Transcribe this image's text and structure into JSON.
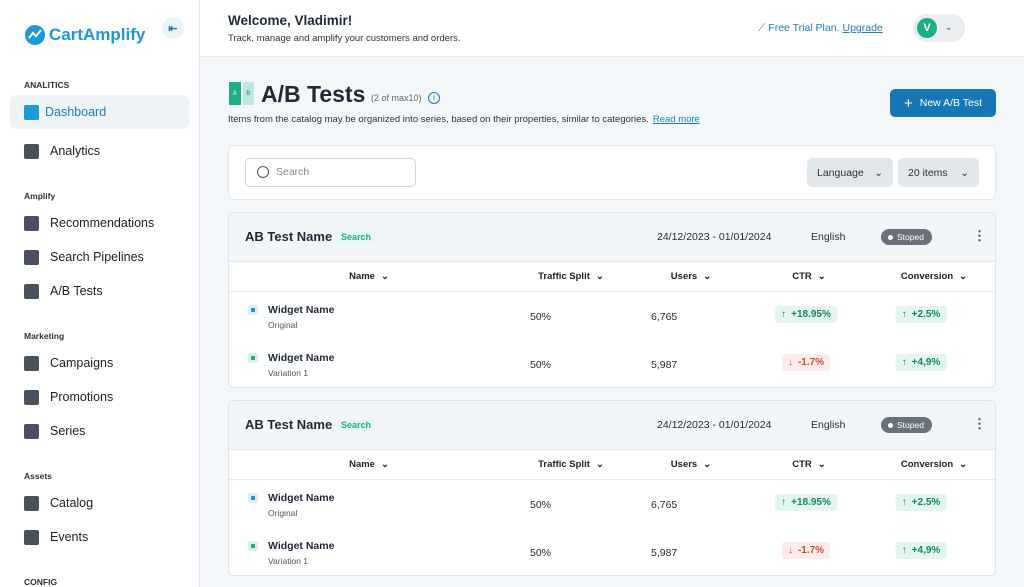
{
  "sidebar": {
    "logo": "CartAmplify",
    "sections": [
      {
        "title": "ANALITICS",
        "items": [
          "Dashboard",
          "Analytics"
        ]
      },
      {
        "title": "Amplify",
        "items": [
          "Recommendations",
          "Search Pipelines",
          "A/B Tests"
        ]
      },
      {
        "title": "Marketing",
        "items": [
          "Campaigns",
          "Promotions",
          "Series"
        ]
      },
      {
        "title": "Assets",
        "items": [
          "Catalog",
          "Events"
        ]
      },
      {
        "title": "CONFIG",
        "items": []
      }
    ]
  },
  "header": {
    "welcome": "Welcome, Vladimir!",
    "subtitle": "Track, manage and amplify your customers and orders.",
    "plan": "Free Trial Plan.",
    "upgrade": "Upgrade",
    "avatar": "V"
  },
  "page": {
    "icon_labels": [
      "A",
      "B"
    ],
    "title": "A/B Tests",
    "count": "(2 of max10)",
    "description": "Items from the catalog may be organized into series, based on their properties, similar to categories.",
    "link": "Read more",
    "button": "New A/B Test",
    "search": "Search",
    "filters": [
      "Language",
      "20 items"
    ]
  },
  "tests": [
    {
      "name": "AB Test Name",
      "tag": "Search",
      "dates": "24/12/2023 - 01/01/2024",
      "language": "English",
      "status": "Stoped",
      "columns": [
        "Name",
        "Traffic Split",
        "Users",
        "CTR",
        "Conversion"
      ],
      "rows": [
        {
          "name": "Widget Name",
          "sub": "Original",
          "split": "50%",
          "users": "6,765",
          "ctr": "+18.95%",
          "conversion": "+2.5%"
        },
        {
          "name": "Widget Name",
          "sub": "Variation 1",
          "split": "50%",
          "users": "5,987",
          "ctr": "-1.7%",
          "conversion": "+4,9%"
        }
      ]
    },
    {
      "name": "AB Test Name",
      "tag": "Search",
      "dates": "24/12/2023 - 01/01/2024",
      "language": "English",
      "status": "Stoped",
      "columns": [
        "Name",
        "Traffic Split",
        "Users",
        "CTR",
        "Conversion"
      ],
      "rows": [
        {
          "name": "Widget Name",
          "sub": "Original",
          "split": "50%",
          "users": "6,765",
          "ctr": "+18.95%",
          "conversion": "+2.5%"
        },
        {
          "name": "Widget Name",
          "sub": "Variation 1",
          "split": "50%",
          "users": "5,987",
          "ctr": "-1.7%",
          "conversion": "+4,9%"
        }
      ]
    }
  ]
}
